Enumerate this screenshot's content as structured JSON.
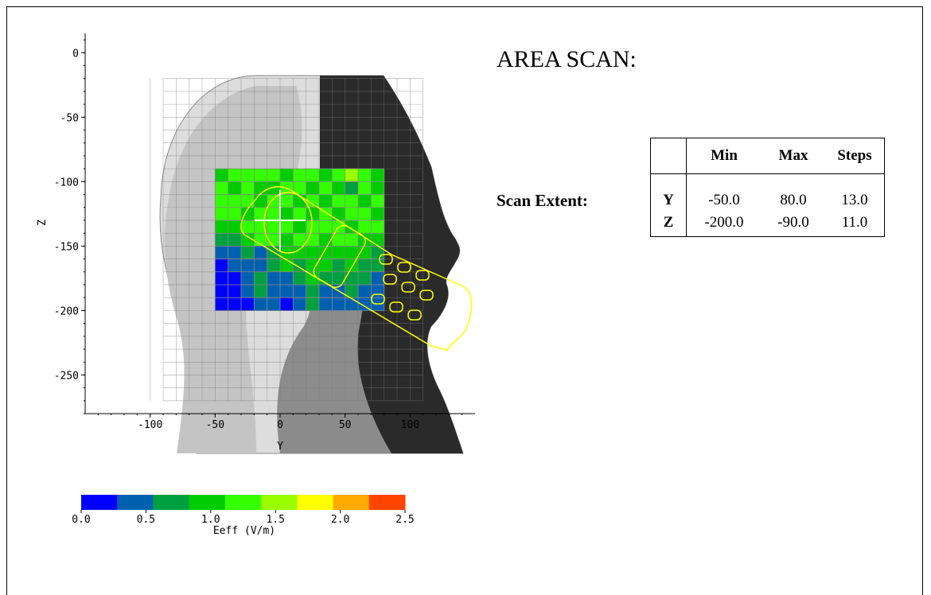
{
  "title": "AREA SCAN:",
  "scan_extent_label": "Scan Extent:",
  "table": {
    "headers": [
      "",
      "Min",
      "Max",
      "Steps"
    ],
    "rows": [
      {
        "axis": "Y",
        "min": "-50.0",
        "max": "80.0",
        "steps": "13.0"
      },
      {
        "axis": "Z",
        "min": "-200.0",
        "max": "-90.0",
        "steps": "11.0"
      }
    ]
  },
  "chart_data": {
    "type": "heatmap",
    "xlabel": "Y",
    "ylabel": "Z",
    "xlim": [
      -150,
      150
    ],
    "ylim": [
      -280,
      15
    ],
    "x_ticks": [
      -100,
      -50,
      0,
      50,
      100
    ],
    "y_ticks": [
      0,
      -50,
      -100,
      -150,
      -200,
      -250
    ],
    "scan_region": {
      "y": [
        -50,
        80
      ],
      "z": [
        -200,
        -90
      ]
    },
    "grid_steps": {
      "y": 13,
      "z": 11
    },
    "max_marker": {
      "y": 0,
      "z": -130
    },
    "colorbar": {
      "label": "Eeff (V/m)",
      "range": [
        0.0,
        2.5
      ],
      "tick_labels": [
        "0.0",
        "0.5",
        "1.0",
        "1.5",
        "2.0",
        "2.5"
      ],
      "colors": [
        "#0000ff",
        "#0060b0",
        "#00a040",
        "#00cc00",
        "#33ff00",
        "#99ff00",
        "#ffff00",
        "#ffaa00",
        "#ff4400"
      ]
    },
    "values": [
      [
        1.1,
        1.2,
        1.3,
        1.2,
        1.2,
        1.1,
        1.2,
        1.3,
        1.1,
        1.2,
        1.5,
        1.2,
        1.1
      ],
      [
        1.2,
        1.0,
        1.3,
        1.1,
        1.0,
        1.3,
        1.2,
        0.9,
        1.3,
        1.1,
        0.8,
        1.3,
        1.0
      ],
      [
        1.3,
        1.2,
        1.2,
        1.0,
        1.3,
        1.2,
        1.0,
        1.2,
        1.1,
        1.3,
        1.2,
        1.0,
        1.2
      ],
      [
        1.2,
        1.3,
        1.1,
        1.3,
        1.2,
        1.1,
        1.3,
        1.1,
        1.2,
        1.0,
        1.2,
        1.3,
        1.1
      ],
      [
        0.9,
        1.0,
        1.2,
        1.2,
        1.3,
        1.2,
        1.1,
        1.2,
        1.3,
        1.2,
        1.1,
        1.2,
        1.2
      ],
      [
        0.6,
        0.8,
        1.0,
        1.2,
        1.2,
        1.1,
        1.2,
        1.2,
        1.0,
        1.2,
        1.2,
        1.1,
        1.0
      ],
      [
        0.3,
        0.4,
        0.6,
        0.5,
        0.7,
        1.0,
        1.1,
        0.9,
        1.0,
        1.1,
        1.0,
        0.9,
        0.8
      ],
      [
        0.2,
        0.3,
        0.5,
        0.4,
        0.6,
        0.9,
        0.8,
        1.0,
        0.9,
        0.8,
        0.9,
        0.7,
        0.6
      ],
      [
        0.1,
        0.2,
        0.4,
        0.7,
        0.5,
        0.4,
        0.6,
        0.9,
        0.7,
        0.6,
        0.8,
        0.6,
        0.5
      ],
      [
        0.2,
        0.1,
        0.3,
        0.8,
        0.4,
        0.3,
        0.5,
        0.7,
        0.5,
        0.4,
        0.6,
        0.5,
        0.4
      ],
      [
        0.1,
        0.2,
        0.2,
        0.5,
        0.3,
        0.2,
        0.4,
        0.6,
        0.4,
        0.3,
        0.5,
        0.4,
        0.3
      ]
    ]
  }
}
